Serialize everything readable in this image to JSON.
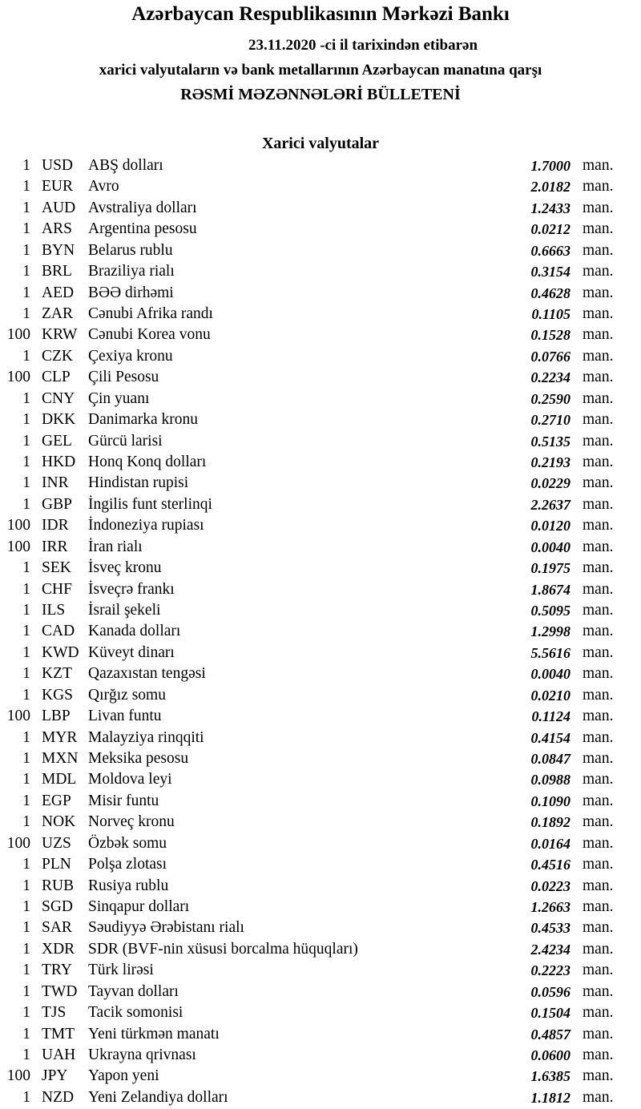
{
  "header": {
    "title": "Azərbaycan Respublikasının Mərkəzi Bankı",
    "date_line": "23.11.2020 -ci il tarixindən etibarən",
    "subtitle": "xarici valyutaların və bank metallarının Azərbaycan manatına qarşı",
    "bulletin": "RƏSMİ MƏZƏNNƏLƏRİ BÜLLETENİ"
  },
  "section_title": "Xarici valyutalar",
  "unit_label": "man.",
  "rows": [
    {
      "amount": "1",
      "code": "USD",
      "name": "ABŞ dolları",
      "rate": "1.7000"
    },
    {
      "amount": "1",
      "code": "EUR",
      "name": "Avro",
      "rate": "2.0182"
    },
    {
      "amount": "1",
      "code": "AUD",
      "name": "Avstraliya dolları",
      "rate": "1.2433"
    },
    {
      "amount": "1",
      "code": "ARS",
      "name": "Argentina pesosu",
      "rate": "0.0212"
    },
    {
      "amount": "1",
      "code": "BYN",
      "name": "Belarus rublu",
      "rate": "0.6663"
    },
    {
      "amount": "1",
      "code": "BRL",
      "name": "Braziliya rialı",
      "rate": "0.3154"
    },
    {
      "amount": "1",
      "code": "AED",
      "name": "BƏƏ dirhəmi",
      "rate": "0.4628"
    },
    {
      "amount": "1",
      "code": "ZAR",
      "name": "Cənubi Afrika randı",
      "rate": "0.1105"
    },
    {
      "amount": "100",
      "code": "KRW",
      "name": "Cənubi Korea vonu",
      "rate": "0.1528"
    },
    {
      "amount": "1",
      "code": "CZK",
      "name": "Çexiya kronu",
      "rate": "0.0766"
    },
    {
      "amount": "100",
      "code": "CLP",
      "name": "Çili Pesosu",
      "rate": "0.2234"
    },
    {
      "amount": "1",
      "code": "CNY",
      "name": "Çin yuanı",
      "rate": "0.2590"
    },
    {
      "amount": "1",
      "code": "DKK",
      "name": "Danimarka kronu",
      "rate": "0.2710"
    },
    {
      "amount": "1",
      "code": "GEL",
      "name": "Gürcü larisi",
      "rate": "0.5135"
    },
    {
      "amount": "1",
      "code": "HKD",
      "name": "Honq Konq dolları",
      "rate": "0.2193"
    },
    {
      "amount": "1",
      "code": "INR",
      "name": "Hindistan rupisi",
      "rate": "0.0229"
    },
    {
      "amount": "1",
      "code": "GBP",
      "name": "İngilis funt sterlinqi",
      "rate": "2.2637"
    },
    {
      "amount": "100",
      "code": "IDR",
      "name": "İndoneziya rupiası",
      "rate": "0.0120"
    },
    {
      "amount": "100",
      "code": "IRR",
      "name": "İran rialı",
      "rate": "0.0040"
    },
    {
      "amount": "1",
      "code": "SEK",
      "name": "İsveç kronu",
      "rate": "0.1975"
    },
    {
      "amount": "1",
      "code": "CHF",
      "name": "İsveçrə frankı",
      "rate": "1.8674"
    },
    {
      "amount": "1",
      "code": "ILS",
      "name": "İsrail şekeli",
      "rate": "0.5095"
    },
    {
      "amount": "1",
      "code": "CAD",
      "name": "Kanada dolları",
      "rate": "1.2998"
    },
    {
      "amount": "1",
      "code": "KWD",
      "name": "Küveyt dinarı",
      "rate": "5.5616"
    },
    {
      "amount": "1",
      "code": "KZT",
      "name": "Qazaxıstan tengəsi",
      "rate": "0.0040"
    },
    {
      "amount": "1",
      "code": "KGS",
      "name": "Qırğız somu",
      "rate": "0.0210"
    },
    {
      "amount": "100",
      "code": "LBP",
      "name": "Livan funtu",
      "rate": "0.1124"
    },
    {
      "amount": "1",
      "code": "MYR",
      "name": "Malayziya rinqqiti",
      "rate": "0.4154"
    },
    {
      "amount": "1",
      "code": "MXN",
      "name": "Meksika pesosu",
      "rate": "0.0847"
    },
    {
      "amount": "1",
      "code": "MDL",
      "name": "Moldova leyi",
      "rate": "0.0988"
    },
    {
      "amount": "1",
      "code": "EGP",
      "name": "Misir funtu",
      "rate": "0.1090"
    },
    {
      "amount": "1",
      "code": "NOK",
      "name": "Norveç kronu",
      "rate": "0.1892"
    },
    {
      "amount": "100",
      "code": "UZS",
      "name": "Özbək somu",
      "rate": "0.0164"
    },
    {
      "amount": "1",
      "code": "PLN",
      "name": "Polşa zlotası",
      "rate": "0.4516"
    },
    {
      "amount": "1",
      "code": "RUB",
      "name": "Rusiya rublu",
      "rate": "0.0223"
    },
    {
      "amount": "1",
      "code": "SGD",
      "name": "Sinqapur dolları",
      "rate": "1.2663"
    },
    {
      "amount": "1",
      "code": "SAR",
      "name": "Səudiyyə Ərəbistanı rialı",
      "rate": "0.4533"
    },
    {
      "amount": "1",
      "code": "XDR",
      "name": "SDR (BVF-nin xüsusi borcalma hüquqları)",
      "rate": "2.4234"
    },
    {
      "amount": "1",
      "code": "TRY",
      "name": "Türk lirəsi",
      "rate": "0.2223"
    },
    {
      "amount": "1",
      "code": "TWD",
      "name": "Tayvan dolları",
      "rate": "0.0596"
    },
    {
      "amount": "1",
      "code": "TJS",
      "name": "Tacik somonisi",
      "rate": "0.1504"
    },
    {
      "amount": "1",
      "code": "TMT",
      "name": "Yeni türkmən manatı",
      "rate": "0.4857"
    },
    {
      "amount": "1",
      "code": "UAH",
      "name": "Ukrayna qrivnası",
      "rate": "0.0600"
    },
    {
      "amount": "100",
      "code": "JPY",
      "name": "Yapon yeni",
      "rate": "1.6385"
    },
    {
      "amount": "1",
      "code": "NZD",
      "name": "Yeni Zelandiya dolları",
      "rate": "1.1812"
    }
  ]
}
